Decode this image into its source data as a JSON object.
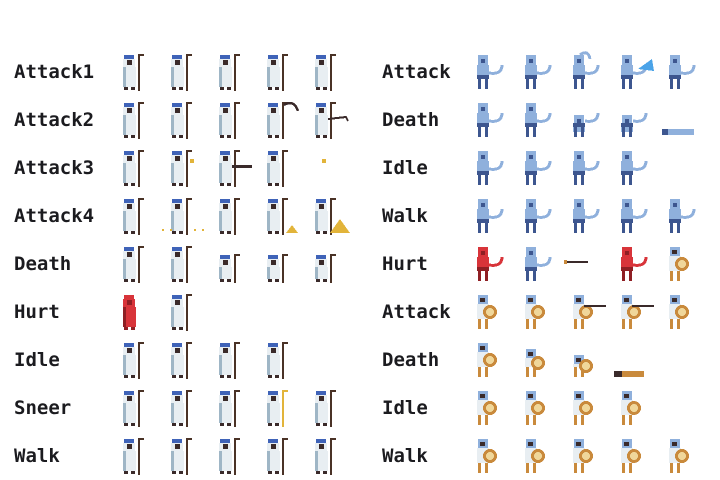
{
  "left_column": {
    "rows": [
      {
        "label": "Attack1",
        "frames": [
          "priest",
          "priest",
          "priest",
          "priest",
          "priest"
        ]
      },
      {
        "label": "Attack2",
        "frames": [
          "priest",
          "priest",
          "priest",
          "priest-scythe",
          "priest-whip"
        ]
      },
      {
        "label": "Attack3",
        "frames": [
          "priest",
          "priest-cast",
          "priest-beam",
          "priest",
          "spark"
        ]
      },
      {
        "label": "Attack4",
        "frames": [
          "priest",
          "priest-sand",
          "priest",
          "priest-pyramid-small",
          "priest-pyramid"
        ]
      },
      {
        "label": "Death",
        "frames": [
          "priest",
          "priest",
          "priest-kneel",
          "priest-kneel",
          "priest-kneel"
        ]
      },
      {
        "label": "Hurt",
        "frames": [
          "priest-red",
          "priest"
        ]
      },
      {
        "label": "Idle",
        "frames": [
          "priest",
          "priest",
          "priest",
          "priest"
        ]
      },
      {
        "label": "Sneer",
        "frames": [
          "priest",
          "priest",
          "priest",
          "priest-staff-gold",
          "priest"
        ]
      },
      {
        "label": "Walk",
        "frames": [
          "priest",
          "priest",
          "priest",
          "priest",
          "priest"
        ]
      }
    ]
  },
  "right_column": {
    "rows": [
      {
        "label": "Attack",
        "frames": [
          "scorpion",
          "scorpion",
          "scorpion-slash",
          "scorpion-swipe",
          "scorpion"
        ]
      },
      {
        "label": "Death",
        "frames": [
          "scorpion",
          "scorpion",
          "scorpion-fall",
          "scorpion-fall",
          "scorpion-lying"
        ]
      },
      {
        "label": "Idle",
        "frames": [
          "scorpion",
          "scorpion",
          "scorpion",
          "scorpion"
        ]
      },
      {
        "label": "Walk",
        "frames": [
          "scorpion",
          "scorpion",
          "scorpion",
          "scorpion",
          "scorpion"
        ]
      },
      {
        "label": "Hurt",
        "frames": [
          "scorpion-red",
          "scorpion",
          "arrow",
          "scorpion-red",
          "shield-warrior"
        ]
      },
      {
        "label": "Attack",
        "frames": [
          "shield-warrior",
          "shield-warrior",
          "shield-warrior-spear",
          "shield-warrior-spear",
          "shield-warrior"
        ]
      },
      {
        "label": "Death",
        "frames": [
          "shield-warrior",
          "shield-warrior-kneel",
          "shield-warrior-fall",
          "shield-warrior-lying"
        ]
      },
      {
        "label": "Idle",
        "frames": [
          "shield-warrior",
          "shield-warrior",
          "shield-warrior",
          "shield-warrior"
        ]
      },
      {
        "label": "Walk",
        "frames": [
          "shield-warrior",
          "shield-warrior",
          "shield-warrior",
          "shield-warrior",
          "shield-warrior"
        ]
      }
    ]
  },
  "colors": {
    "label": "#1b1b1f",
    "robe": "#e8eef2",
    "robe_shade": "#9fb6c6",
    "headdress_blue": "#3f63b8",
    "skin_dark": "#3a2a2a",
    "staff": "#4a3226",
    "gold": "#e2b43a",
    "scorpion_body": "#8fb0dc",
    "scorpion_dark": "#3d568f",
    "hurt_red": "#d8343a",
    "shield": "#c98a3c",
    "shield_ring": "#f0d79a"
  }
}
